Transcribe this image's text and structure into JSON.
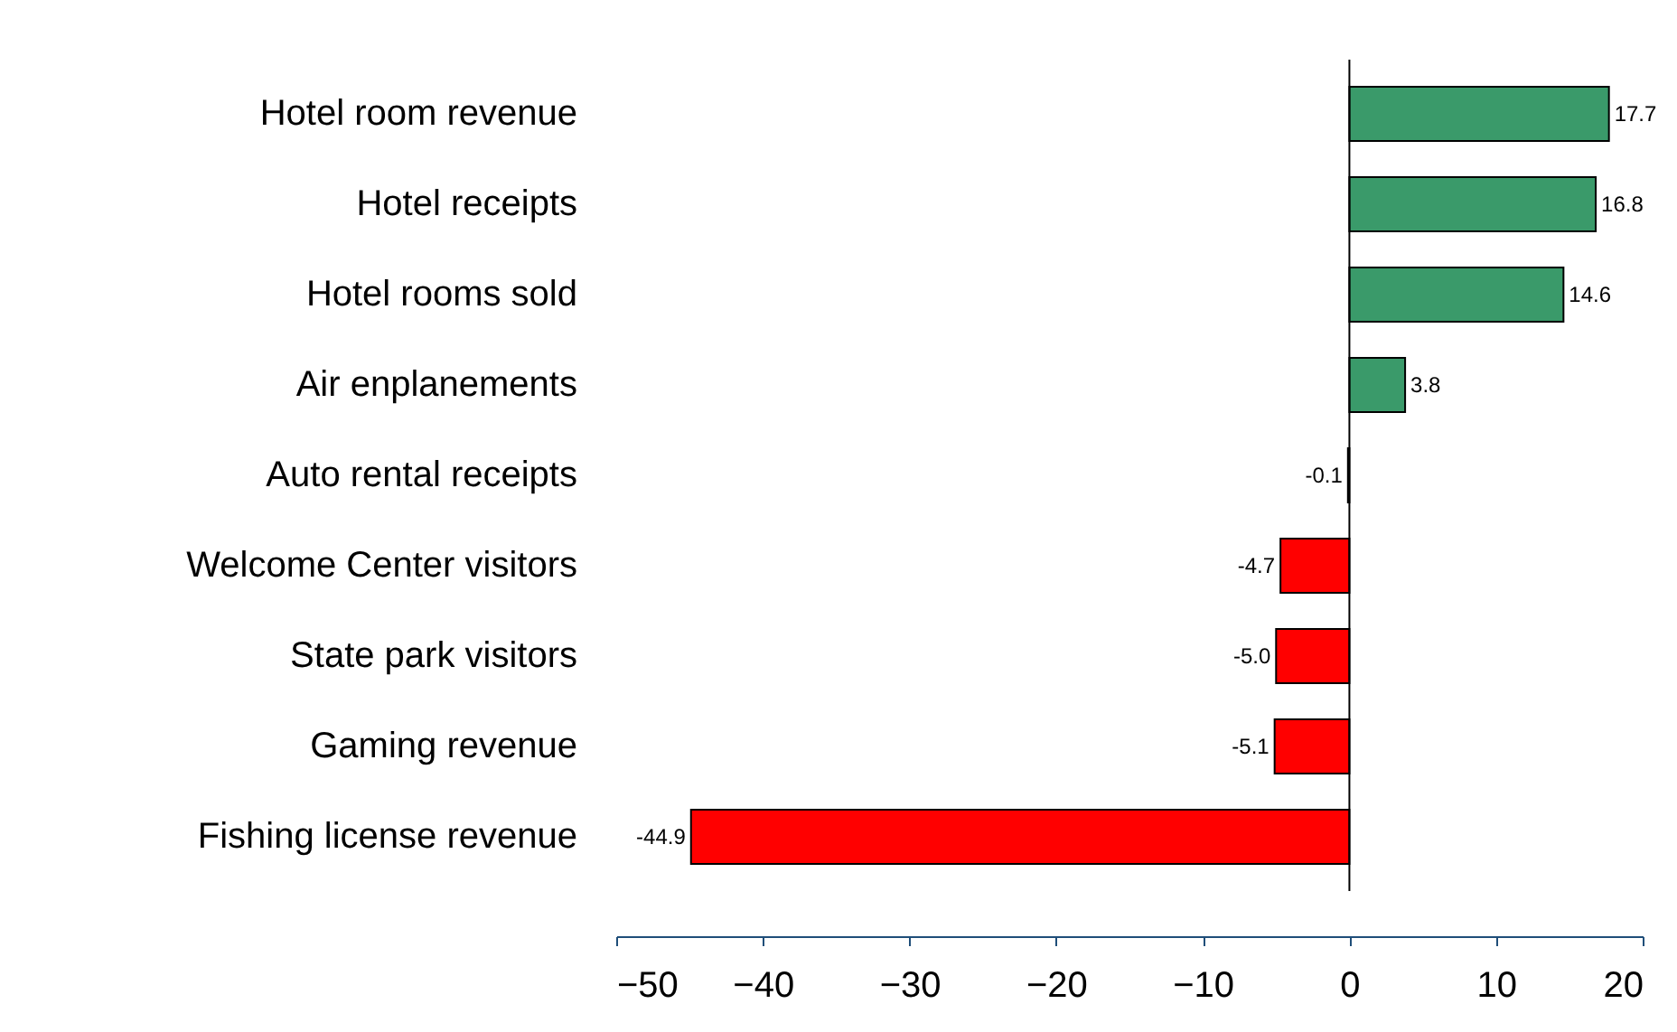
{
  "chart_data": {
    "type": "bar",
    "orientation": "horizontal",
    "categories": [
      "Hotel room revenue",
      "Hotel receipts",
      "Hotel rooms sold",
      "Air enplanements",
      "Auto rental receipts",
      "Welcome Center visitors",
      "State park visitors",
      "Gaming revenue",
      "Fishing license revenue"
    ],
    "values": [
      17.7,
      16.8,
      14.6,
      3.8,
      -0.1,
      -4.7,
      -5.0,
      -5.1,
      -44.9
    ],
    "colors": [
      "#3a9a6a",
      "#3a9a6a",
      "#3a9a6a",
      "#3a9a6a",
      "#ff0000",
      "#ff0000",
      "#ff0000",
      "#ff0000",
      "#ff0000"
    ],
    "value_labels": [
      "17.7",
      "16.8",
      "14.6",
      "3.8",
      "-0.1",
      "-4.7",
      "-5.0",
      "-5.1",
      "-44.9"
    ],
    "xlim": [
      -50,
      20
    ],
    "xticks": [
      -50,
      -40,
      -30,
      -20,
      -10,
      0,
      10,
      20
    ],
    "ref_lines": [
      {
        "axis": "x",
        "value": 0,
        "color": "#000000"
      }
    ],
    "grid": false,
    "legend": false
  }
}
